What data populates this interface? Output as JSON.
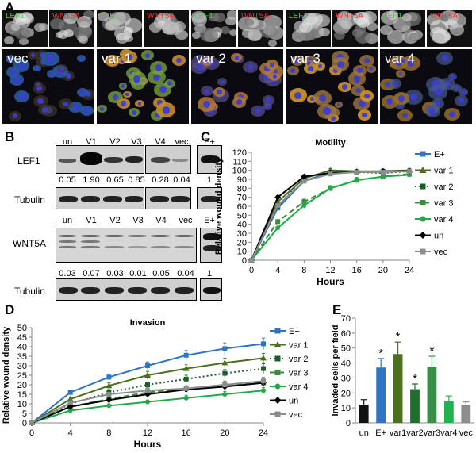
{
  "panels": {
    "A": "A",
    "B": "B",
    "C": "C",
    "D": "D",
    "E": "E"
  },
  "panel_a": {
    "channel_labels": {
      "lef1": "LEF1",
      "wnt5a": "WNT5A"
    },
    "groups": [
      "vec",
      "var 1",
      "var 2",
      "var 3",
      "var 4"
    ],
    "colors": {
      "lef1_label": "#3fd63f",
      "wnt5a_label": "#ff3030"
    }
  },
  "panel_b": {
    "lef1_lanes": [
      "un",
      "V1",
      "V2",
      "V3",
      "V4",
      "vec",
      "E+"
    ],
    "lef1_label": "LEF1",
    "lef1_values": [
      "0.05",
      "1.90",
      "0.65",
      "0.85",
      "0.28",
      "0.04",
      "1"
    ],
    "tubulin_label": "Tubulin",
    "wnt5a_lanes": [
      "un",
      "V1",
      "V2",
      "V3",
      "V4",
      "vec",
      "E+"
    ],
    "wnt5a_label": "WNT5A",
    "wnt5a_values": [
      "0.03",
      "0.07",
      "0.03",
      "0.01",
      "0.05",
      "0.04",
      "1"
    ]
  },
  "chart_data": [
    {
      "type": "line",
      "panel": "C",
      "title": "Motility",
      "xlabel": "Hours",
      "ylabel": "Relative wound density",
      "x": [
        0,
        4,
        8,
        12,
        16,
        20,
        24
      ],
      "xlim": [
        0,
        24
      ],
      "ylim": [
        0,
        120
      ],
      "xticks": [
        0,
        4,
        8,
        12,
        16,
        20,
        24
      ],
      "yticks": [
        0,
        10,
        20,
        30,
        40,
        50,
        60,
        70,
        80,
        90,
        100,
        110,
        120
      ],
      "legend": "right",
      "series": [
        {
          "name": "E+",
          "color": "#2f74c0",
          "marker": "square",
          "dash": "solid",
          "values": [
            0,
            58,
            88,
            98,
            98,
            99,
            99
          ],
          "err": [
            0,
            2,
            2,
            2,
            2,
            2,
            2
          ]
        },
        {
          "name": "var 1",
          "color": "#4b6f1e",
          "marker": "triangle",
          "dash": "solid",
          "values": [
            0,
            65,
            91,
            100,
            99,
            99,
            100
          ],
          "err": [
            0,
            2,
            2,
            2,
            2,
            2,
            2
          ]
        },
        {
          "name": "var 2",
          "color": "#1e5e28",
          "marker": "square",
          "dash": "dot",
          "values": [
            0,
            60,
            92,
            98,
            98,
            97,
            99
          ],
          "err": [
            0,
            2,
            2,
            2,
            2,
            2,
            2
          ]
        },
        {
          "name": "var 3",
          "color": "#3d8c3d",
          "marker": "square",
          "dash": "dash",
          "values": [
            0,
            43,
            65,
            80,
            89,
            93,
            96
          ],
          "err": [
            0,
            2,
            3,
            3,
            3,
            2,
            2
          ]
        },
        {
          "name": "var 4",
          "color": "#22a84a",
          "marker": "circle",
          "dash": "solid",
          "values": [
            0,
            36,
            61,
            80,
            89,
            93,
            95
          ],
          "err": [
            0,
            2,
            3,
            3,
            3,
            2,
            2
          ]
        },
        {
          "name": "un",
          "color": "#000000",
          "marker": "diamond",
          "dash": "solid",
          "values": [
            0,
            70,
            93,
            97,
            98,
            99,
            99
          ],
          "err": [
            0,
            2,
            2,
            2,
            2,
            2,
            2
          ]
        },
        {
          "name": "vec",
          "color": "#8c8c8c",
          "marker": "square",
          "dash": "solid",
          "values": [
            0,
            61,
            88,
            96,
            98,
            98,
            99
          ],
          "err": [
            0,
            2,
            2,
            2,
            2,
            2,
            2
          ]
        }
      ]
    },
    {
      "type": "line",
      "panel": "D",
      "title": "Invasion",
      "xlabel": "Hours",
      "ylabel": "Relative wound density",
      "x": [
        0,
        4,
        8,
        12,
        16,
        20,
        24
      ],
      "xlim": [
        0,
        24
      ],
      "ylim": [
        0,
        50
      ],
      "xticks": [
        0,
        4,
        8,
        12,
        16,
        20,
        24
      ],
      "yticks": [
        0,
        5,
        10,
        15,
        20,
        25,
        30,
        35,
        40,
        45,
        50
      ],
      "legend": "right",
      "series": [
        {
          "name": "E+",
          "color": "#2f74c0",
          "marker": "square",
          "dash": "solid",
          "values": [
            0,
            16,
            24,
            30,
            35.5,
            39,
            41.5
          ],
          "err": [
            0,
            1,
            1.5,
            2,
            2.5,
            3,
            3
          ]
        },
        {
          "name": "var 1",
          "color": "#4b6f1e",
          "marker": "triangle",
          "dash": "solid",
          "values": [
            0,
            12.5,
            19.5,
            25,
            28.5,
            31.5,
            34
          ],
          "err": [
            0,
            1,
            1.5,
            2,
            2,
            2.5,
            2.5
          ]
        },
        {
          "name": "var 2",
          "color": "#1e5e28",
          "marker": "square",
          "dash": "dot",
          "values": [
            0,
            10,
            16,
            20,
            23,
            26,
            28.5
          ],
          "err": [
            0,
            1,
            1.5,
            1.5,
            2,
            2,
            2.5
          ]
        },
        {
          "name": "var 3",
          "color": "#3d8c3d",
          "marker": "square",
          "dash": "dash",
          "values": [
            0,
            8.5,
            12.5,
            16,
            18,
            20,
            21
          ],
          "err": [
            0,
            1,
            1,
            1.5,
            1.5,
            2,
            2
          ]
        },
        {
          "name": "var 4",
          "color": "#22a84a",
          "marker": "circle",
          "dash": "solid",
          "values": [
            0,
            6.5,
            9,
            11,
            13,
            15,
            17
          ],
          "err": [
            0,
            1,
            1,
            1,
            1.5,
            1.5,
            1.5
          ]
        },
        {
          "name": "un",
          "color": "#000000",
          "marker": "diamond",
          "dash": "solid",
          "values": [
            0,
            8.5,
            12,
            15,
            17.5,
            19,
            21
          ],
          "err": [
            0,
            1,
            1,
            1.5,
            1.5,
            1.5,
            1.5
          ]
        },
        {
          "name": "vec",
          "color": "#8c8c8c",
          "marker": "square",
          "dash": "solid",
          "values": [
            0,
            10.5,
            15,
            17,
            18,
            20,
            22
          ],
          "err": [
            0,
            1,
            1,
            1.5,
            1.5,
            1.5,
            2
          ]
        }
      ]
    },
    {
      "type": "bar",
      "panel": "E",
      "ylabel": "Invaded cells per field",
      "categories": [
        "un",
        "E+",
        "var1",
        "var2",
        "var3",
        "var4",
        "vec"
      ],
      "values": [
        12,
        37,
        46,
        22.5,
        37.5,
        14.5,
        12
      ],
      "err": [
        3.5,
        6,
        8,
        3.5,
        7,
        3.5,
        2
      ],
      "significant": [
        false,
        true,
        true,
        true,
        true,
        false,
        false
      ],
      "significance_mark": "*",
      "colors": [
        "#111111",
        "#2f74c0",
        "#4b6f1e",
        "#1e6e2e",
        "#3a8f48",
        "#22b14c",
        "#8c8c8c"
      ],
      "ylim": [
        0,
        70
      ],
      "yticks": [
        0,
        10,
        20,
        30,
        40,
        50,
        60,
        70
      ]
    }
  ]
}
